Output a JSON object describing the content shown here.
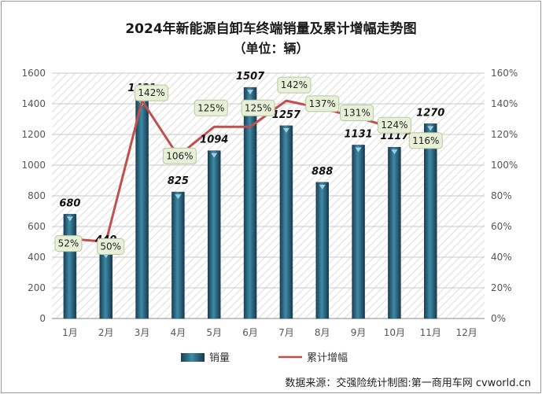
{
  "title": "2024年新能源自卸车终端销量及累计增幅走势图",
  "subtitle": "（单位：辆）",
  "source": "数据来源：交强险统计制图:第一商用车网 cvworld.cn",
  "colors": {
    "bar": "#2f6f8c",
    "bar_dark": "#1a3f55",
    "line": "#c0504d",
    "label_bg": "#e8f0d8"
  },
  "chart_data": {
    "type": "bar",
    "categories": [
      "1月",
      "2月",
      "3月",
      "4月",
      "5月",
      "6月",
      "7月",
      "8月",
      "9月",
      "10月",
      "11月",
      "12月"
    ],
    "series": [
      {
        "name": "销量",
        "type": "bar",
        "axis": "left",
        "values": [
          680,
          440,
          1431,
          825,
          1094,
          1507,
          1257,
          888,
          1131,
          1117,
          1270,
          null
        ]
      },
      {
        "name": "累计增幅",
        "type": "line",
        "axis": "right",
        "values": [
          52,
          50,
          142,
          106,
          125,
          125,
          142,
          137,
          131,
          124,
          116,
          null
        ]
      }
    ],
    "y_left": {
      "min": 0,
      "max": 1600,
      "ticks": [
        "0",
        "200",
        "400",
        "600",
        "800",
        "1000",
        "1200",
        "1400",
        "1600"
      ]
    },
    "y_right": {
      "min": 0,
      "max": 160,
      "ticks": [
        "0%",
        "20%",
        "40%",
        "60%",
        "80%",
        "100%",
        "120%",
        "140%",
        "160%"
      ]
    },
    "value_labels": [
      "680",
      "440",
      "1431",
      "825",
      "1094",
      "1507",
      "1257",
      "888",
      "1131",
      "1117",
      "1270"
    ],
    "percent_labels": [
      "52%",
      "50%",
      "142%",
      "106%",
      "125%",
      "125%",
      "142%",
      "137%",
      "131%",
      "124%",
      "116%"
    ],
    "legend": {
      "bar_label": "销量",
      "line_label": "累计增幅",
      "position": "bottom"
    },
    "grid": true
  }
}
